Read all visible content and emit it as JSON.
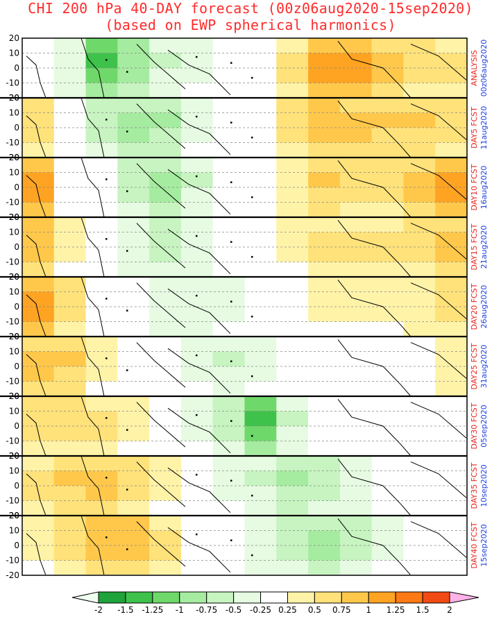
{
  "title_line1": "CHI 200 hPa 40-DAY forecast (00z06aug2020-15sep2020)",
  "title_line2": "(based on EWP spherical harmonics)",
  "colors": {
    "title": "#ff2a2a",
    "panel_label_kind": "#e8241c",
    "panel_label_date": "#1f3fe0"
  },
  "chart_data": {
    "type": "heatmap",
    "variable": "CHI 200 hPa",
    "ylim": [
      -20,
      20
    ],
    "y_ticks": [
      "20",
      "10",
      "0",
      "-10",
      "-20"
    ],
    "grid": "dashed latitude lines every 10 degrees",
    "colorbar": {
      "ticks": [
        "-2",
        "-1.5",
        "-1.25",
        "-1",
        "-0.75",
        "-0.5",
        "-0.25",
        "0.25",
        "0.5",
        "0.75",
        "1",
        "1.25",
        "1.5",
        "2"
      ],
      "colors": [
        "#f0fff0",
        "#1fa33a",
        "#3ec24b",
        "#6fd86a",
        "#a6eca0",
        "#c7f4c0",
        "#e6fbe2",
        "#ffffff",
        "#fff3a8",
        "#ffe27a",
        "#ffc84a",
        "#ffa322",
        "#ff7a14",
        "#f24a14",
        "#ffb2e6"
      ]
    },
    "panels": [
      {
        "kind": "ANALYSIS",
        "date": "00z06aug2020",
        "values": [
          0.1,
          -0.4,
          -1.2,
          -0.9,
          -0.5,
          -0.3,
          0.0,
          0.2,
          0.5,
          1.0,
          1.1,
          0.8,
          0.6,
          0.5
        ]
      },
      {
        "kind": "DAY5 FCST",
        "date": "11aug2020",
        "values": [
          0.6,
          -0.2,
          -0.6,
          -0.8,
          -0.7,
          -0.3,
          -0.1,
          0.2,
          0.6,
          0.9,
          0.8,
          0.7,
          0.7,
          0.6
        ]
      },
      {
        "kind": "DAY10 FCST",
        "date": "16aug2020",
        "values": [
          1.0,
          0.2,
          -0.2,
          -0.6,
          -0.8,
          -0.5,
          -0.2,
          0.1,
          0.4,
          0.7,
          0.6,
          0.6,
          0.8,
          1.0
        ]
      },
      {
        "kind": "DAY15 FCST",
        "date": "21aug2020",
        "values": [
          0.9,
          0.3,
          0.0,
          -0.4,
          -0.6,
          -0.4,
          -0.2,
          0.0,
          0.3,
          0.5,
          0.5,
          0.5,
          0.6,
          0.8
        ]
      },
      {
        "kind": "DAY20 FCST",
        "date": "26aug2020",
        "values": [
          1.0,
          0.6,
          0.1,
          -0.2,
          -0.4,
          -0.4,
          -0.3,
          -0.1,
          0.2,
          0.3,
          0.3,
          0.3,
          0.4,
          0.6
        ]
      },
      {
        "kind": "DAY25 FCST",
        "date": "31aug2020",
        "values": [
          0.8,
          0.7,
          0.3,
          0.0,
          -0.2,
          -0.3,
          -0.5,
          -0.3,
          0.0,
          0.2,
          0.2,
          0.1,
          0.2,
          0.4
        ]
      },
      {
        "kind": "DAY30 FCST",
        "date": "05sep2020",
        "values": [
          0.6,
          0.6,
          0.5,
          0.3,
          0.0,
          -0.3,
          -0.6,
          -1.2,
          -0.5,
          -0.1,
          0.0,
          0.0,
          0.1,
          0.2
        ]
      },
      {
        "kind": "DAY35 FCST",
        "date": "10sep2020",
        "values": [
          0.5,
          0.7,
          0.8,
          0.6,
          0.3,
          0.0,
          -0.3,
          -0.5,
          -0.7,
          -0.6,
          -0.4,
          -0.2,
          -0.1,
          0.1
        ]
      },
      {
        "kind": "DAY40 FCST",
        "date": "15sep2020",
        "values": [
          0.3,
          0.6,
          0.9,
          0.9,
          0.5,
          0.1,
          -0.2,
          -0.4,
          -0.6,
          -0.8,
          -0.6,
          -0.3,
          -0.1,
          0.0
        ]
      }
    ]
  }
}
